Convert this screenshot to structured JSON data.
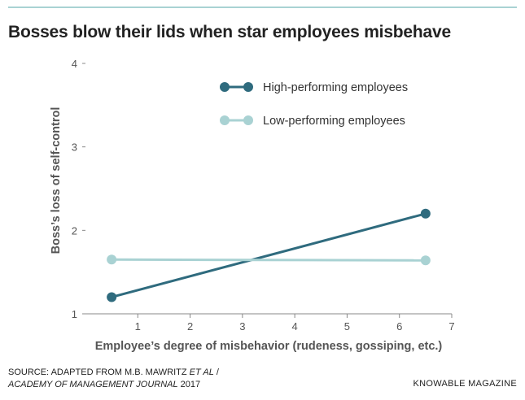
{
  "header": {
    "title": "Bosses blow their lids when star employees misbehave"
  },
  "footer": {
    "source_prefix": "SOURCE: ADAPTED FROM M.B. MAWRITZ ",
    "source_authors_italic": "ET AL",
    "source_sep": " /",
    "source_journal_italic": "ACADEMY OF MANAGEMENT JOURNAL",
    "source_year": " 2017",
    "publisher": "KNOWABLE MAGAZINE"
  },
  "colors": {
    "high": "#2f6b7e",
    "low": "#a9d2d3",
    "axis": "#888888",
    "text": "#555555",
    "rule": "#a9d2d3"
  },
  "chart_data": {
    "type": "line",
    "title": "Bosses blow their lids when star employees misbehave",
    "xlabel": "Employee’s degree of misbehavior (rudeness, gossiping, etc.)",
    "ylabel": "Boss’s loss of self-control",
    "xlim": [
      0,
      7
    ],
    "ylim": [
      1,
      4
    ],
    "xticks": [
      1,
      2,
      3,
      4,
      5,
      6,
      7
    ],
    "yticks": [
      1,
      2,
      3,
      4
    ],
    "grid": false,
    "legend": "top-right",
    "series": [
      {
        "name": "High-performing employees",
        "x": [
          0.5,
          6.5
        ],
        "y": [
          1.2,
          2.2
        ],
        "color": "#2f6b7e"
      },
      {
        "name": "Low-performing employees",
        "x": [
          0.5,
          6.5
        ],
        "y": [
          1.65,
          1.64
        ],
        "color": "#a9d2d3"
      }
    ]
  }
}
